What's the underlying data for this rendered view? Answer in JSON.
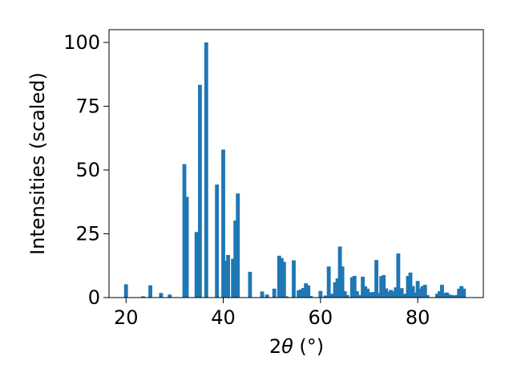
{
  "chart_data": {
    "type": "bar",
    "title": "",
    "xlabel": "2θ (°)",
    "ylabel": "Intensities (scaled)",
    "xlim": [
      16.5,
      93.5
    ],
    "ylim": [
      0,
      105
    ],
    "xticks": [
      20,
      40,
      60,
      80
    ],
    "yticks": [
      0,
      25,
      50,
      75,
      100
    ],
    "grid": false,
    "legend": "none",
    "color": "#1f77b4",
    "bar_width": 0.8,
    "series": [
      {
        "x": [
          20.0,
          23.5,
          25.0,
          27.2,
          29.0,
          32.0,
          32.5,
          34.5,
          35.2,
          36.5,
          38.7,
          40.0,
          40.5,
          41.0,
          42.0,
          42.5,
          43.0,
          45.5,
          48.0,
          49.0,
          50.5,
          51.5,
          52.0,
          52.5,
          53.0,
          54.5,
          55.5,
          56.0,
          56.5,
          57.0,
          57.5,
          58.0,
          60.0,
          61.0,
          61.7,
          62.5,
          63.0,
          63.5,
          64.0,
          64.5,
          65.0,
          65.5,
          66.5,
          67.0,
          67.5,
          68.0,
          68.7,
          69.2,
          69.7,
          70.3,
          71.0,
          71.5,
          72.0,
          72.5,
          73.0,
          73.5,
          74.0,
          74.5,
          75.0,
          75.5,
          76.0,
          76.7,
          77.5,
          78.0,
          78.5,
          79.0,
          79.5,
          80.0,
          80.5,
          81.0,
          81.5,
          82.0,
          84.0,
          84.5,
          85.0,
          85.5,
          86.0,
          86.5,
          87.0,
          87.5,
          88.0,
          88.5,
          89.0,
          89.5
        ],
        "values": [
          5.2,
          0.5,
          4.8,
          1.8,
          1.2,
          52.3,
          39.5,
          25.7,
          83.4,
          100.0,
          44.3,
          58.0,
          14.4,
          16.7,
          15.2,
          30.2,
          40.8,
          10.1,
          2.4,
          1.2,
          3.5,
          16.4,
          15.5,
          14.0,
          0.5,
          14.6,
          2.8,
          3.2,
          3.8,
          5.6,
          4.8,
          0.6,
          2.6,
          0.8,
          12.2,
          1.5,
          6.0,
          7.5,
          20.0,
          12.2,
          2.5,
          1.0,
          8.0,
          8.5,
          2.5,
          1.0,
          8.2,
          4.4,
          3.5,
          2.1,
          2.2,
          14.7,
          1.8,
          8.4,
          8.8,
          3.6,
          2.3,
          3.0,
          2.4,
          4.0,
          17.3,
          3.7,
          1.5,
          8.5,
          9.8,
          4.5,
          2.0,
          6.5,
          3.5,
          4.5,
          5.0,
          1.0,
          1.5,
          2.5,
          5.0,
          1.8,
          2.0,
          1.2,
          1.0,
          0.8,
          1.0,
          3.5,
          4.5,
          3.5
        ]
      }
    ]
  }
}
